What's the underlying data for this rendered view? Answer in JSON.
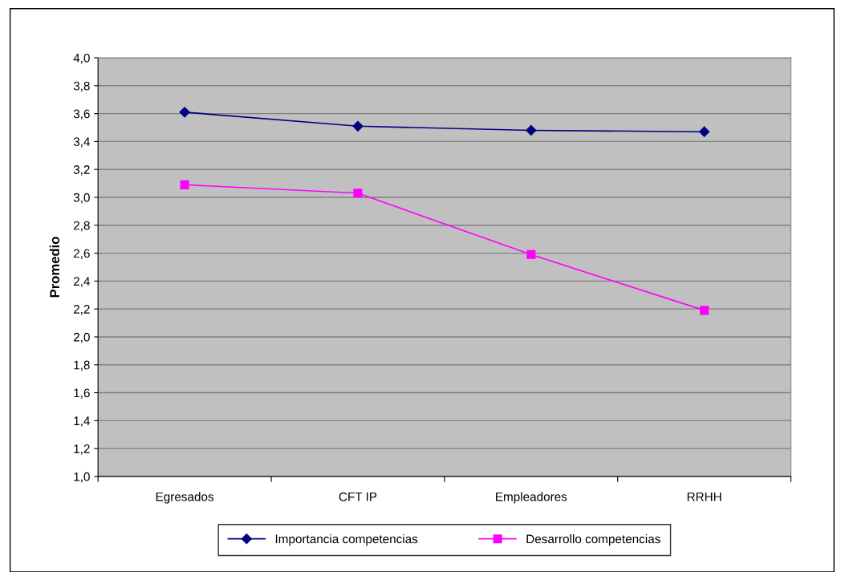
{
  "chart_data": {
    "type": "line",
    "ylabel": "Promedio",
    "categories": [
      "Egresados",
      "CFT IP",
      "Empleadores",
      "RRHH"
    ],
    "series": [
      {
        "name": "Importancia competencias",
        "color": "#000080",
        "marker": "diamond",
        "values": [
          3.61,
          3.51,
          3.48,
          3.47
        ]
      },
      {
        "name": "Desarrollo competencias",
        "color": "#ff00ff",
        "marker": "square",
        "values": [
          3.09,
          3.03,
          2.59,
          2.19
        ]
      }
    ],
    "ylim": [
      1.0,
      4.0
    ],
    "yticks": [
      {
        "value": 1.0,
        "label": "1,0"
      },
      {
        "value": 1.2,
        "label": "1,2"
      },
      {
        "value": 1.4,
        "label": "1,4"
      },
      {
        "value": 1.6,
        "label": "1,6"
      },
      {
        "value": 1.8,
        "label": "1,8"
      },
      {
        "value": 2.0,
        "label": "2,0"
      },
      {
        "value": 2.2,
        "label": "2,2"
      },
      {
        "value": 2.4,
        "label": "2,4"
      },
      {
        "value": 2.6,
        "label": "2,6"
      },
      {
        "value": 2.8,
        "label": "2,8"
      },
      {
        "value": 3.0,
        "label": "3,0"
      },
      {
        "value": 3.2,
        "label": "3,2"
      },
      {
        "value": 3.4,
        "label": "3,4"
      },
      {
        "value": 3.6,
        "label": "3,6"
      },
      {
        "value": 3.8,
        "label": "3,8"
      },
      {
        "value": 4.0,
        "label": "4,0"
      }
    ],
    "grid": "y",
    "legend": "bottom",
    "line_style": "solid"
  }
}
